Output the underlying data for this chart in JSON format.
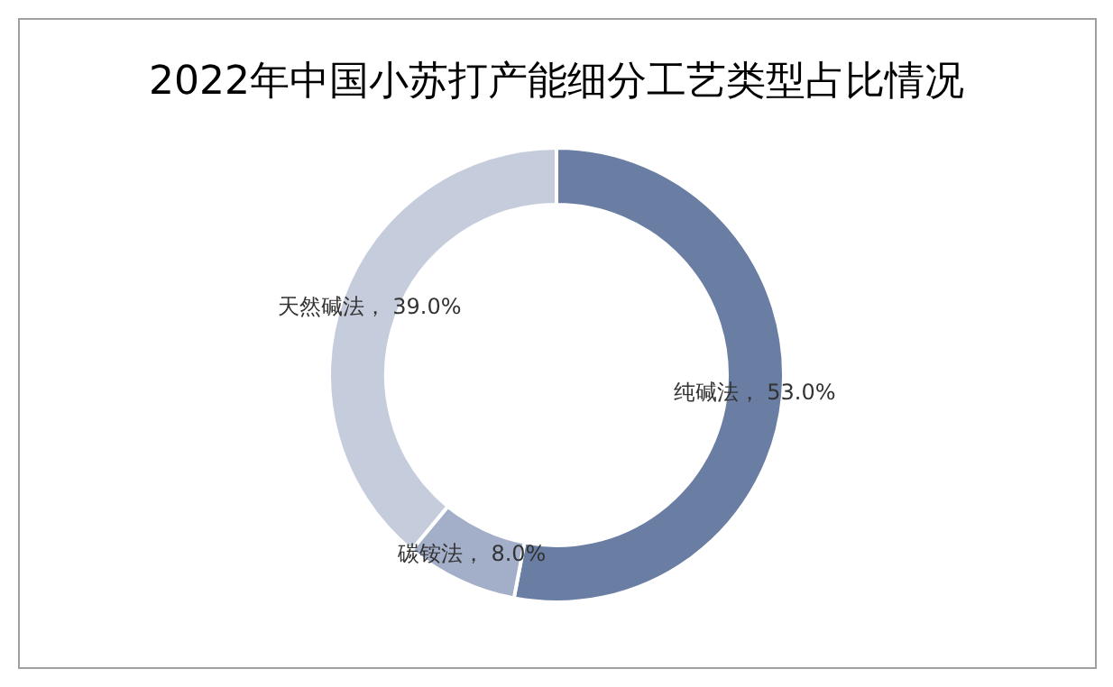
{
  "chart_data": {
    "type": "donut",
    "title": "2022年中国小苏打产能细分工艺类型占比情况",
    "categories": [
      "纯碱法",
      "碳铵法",
      "天然碱法"
    ],
    "values": [
      53,
      8,
      39
    ],
    "value_labels": [
      "53.0%",
      "8.0%",
      "39.0%"
    ],
    "colors": [
      "#6a7ea4",
      "#a3aec8",
      "#c5ccdb"
    ],
    "legend": false
  }
}
